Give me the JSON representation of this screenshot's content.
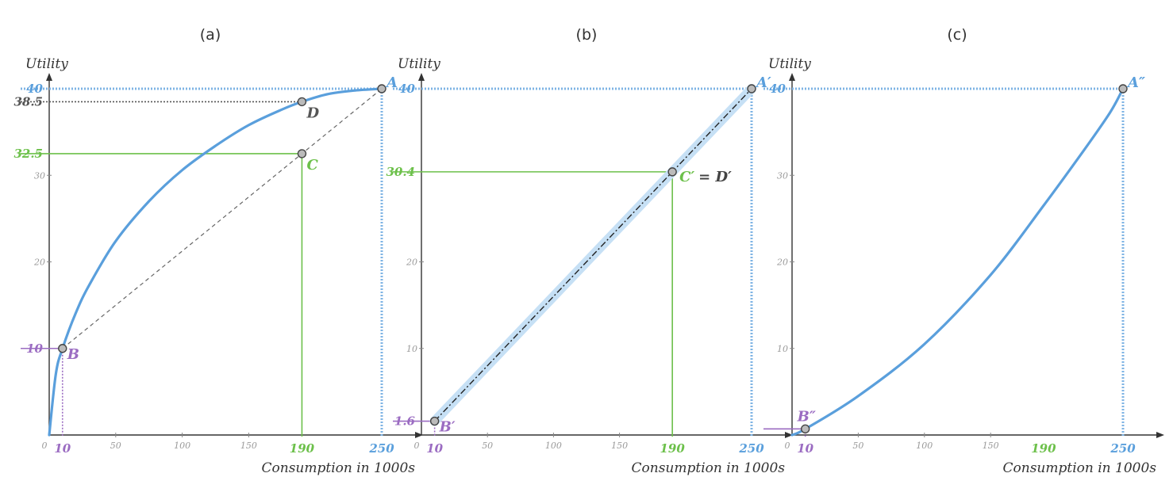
{
  "colors": {
    "curve": "#5a9fdc",
    "curve_halo": "#c6e0f5",
    "guide_blue": "#7fb4e4",
    "green": "#6cc04a",
    "purple": "#9b6cc2",
    "dark": "#555555",
    "axis": "#333333"
  },
  "chart_data": [
    {
      "type": "line",
      "panel_label": "(a)",
      "ylabel": "Utility",
      "xlabel": "Consumption in 1000s",
      "xlim": [
        0,
        250
      ],
      "ylim": [
        0,
        40
      ],
      "x_tick_labels": [
        "0",
        "50",
        "100",
        "150"
      ],
      "y_tick_labels": [
        "20",
        "30"
      ],
      "series": [
        {
          "style": "curve",
          "x": [
            0,
            5,
            10,
            20,
            30,
            50,
            75,
            100,
            125,
            150,
            175,
            190,
            210,
            230,
            250
          ],
          "y": [
            0,
            7.07,
            10,
            14.1,
            17.3,
            22.4,
            27.0,
            30.6,
            33.4,
            35.8,
            37.6,
            38.5,
            39.4,
            39.8,
            40
          ]
        },
        {
          "style": "chord",
          "x": [
            10,
            250
          ],
          "y": [
            10,
            40
          ]
        }
      ],
      "points": [
        {
          "label": "A",
          "x": 250,
          "y": 40,
          "color": "blue"
        },
        {
          "label": "D",
          "x": 190,
          "y": 38.5,
          "color": "dark"
        },
        {
          "label": "C",
          "x": 190,
          "y": 32.5,
          "color": "green"
        },
        {
          "label": "B",
          "x": 10,
          "y": 10,
          "color": "purple"
        }
      ],
      "key_y_ticks": [
        {
          "text": "40",
          "value": 40,
          "color": "blue"
        },
        {
          "text": "38.5",
          "value": 38.5,
          "color": "dark"
        },
        {
          "text": "32.5",
          "value": 32.5,
          "color": "green"
        },
        {
          "text": "10",
          "value": 10,
          "color": "purple"
        }
      ],
      "key_x_ticks": [
        {
          "text": "10",
          "value": 10,
          "color": "purple"
        },
        {
          "text": "190",
          "value": 190,
          "color": "green"
        },
        {
          "text": "250",
          "value": 250,
          "color": "blue"
        }
      ]
    },
    {
      "type": "line",
      "panel_label": "(b)",
      "ylabel": "Utility",
      "xlabel": "Consumption in 1000s",
      "xlim": [
        0,
        250
      ],
      "ylim": [
        0,
        40
      ],
      "x_tick_labels": [
        "0",
        "50",
        "100",
        "150"
      ],
      "y_tick_labels": [
        "10",
        "20"
      ],
      "series": [
        {
          "style": "straight",
          "x": [
            10,
            250
          ],
          "y": [
            1.6,
            40
          ]
        }
      ],
      "points": [
        {
          "label": "A′",
          "x": 250,
          "y": 40,
          "color": "blue"
        },
        {
          "label": "C′",
          "x": 190,
          "y": 30.4,
          "color": "green",
          "suffix": " = D′"
        },
        {
          "label": "B′",
          "x": 10,
          "y": 1.6,
          "color": "purple"
        }
      ],
      "key_y_ticks": [
        {
          "text": "40",
          "value": 40,
          "color": "blue"
        },
        {
          "text": "30.4",
          "value": 30.4,
          "color": "green"
        },
        {
          "text": "1.6",
          "value": 1.6,
          "color": "purple"
        }
      ],
      "key_x_ticks": [
        {
          "text": "10",
          "value": 10,
          "color": "purple"
        },
        {
          "text": "190",
          "value": 190,
          "color": "green"
        },
        {
          "text": "250",
          "value": 250,
          "color": "blue"
        }
      ]
    },
    {
      "type": "line",
      "panel_label": "(c)",
      "ylabel": "Utility",
      "xlabel": "Consumption in 1000s",
      "xlim": [
        0,
        250
      ],
      "ylim": [
        0,
        40
      ],
      "x_tick_labels": [
        "0",
        "50",
        "100",
        "150"
      ],
      "y_tick_labels": [
        "10",
        "20",
        "30"
      ],
      "series": [
        {
          "style": "curve",
          "x": [
            0,
            10,
            50,
            100,
            150,
            190,
            220,
            240,
            250
          ],
          "y": [
            0,
            0.7,
            4.5,
            10.5,
            18.5,
            26.5,
            32.8,
            37.2,
            40
          ]
        }
      ],
      "points": [
        {
          "label": "A″",
          "x": 250,
          "y": 40,
          "color": "blue"
        },
        {
          "label": "B″",
          "x": 10,
          "y": 0.7,
          "color": "purple"
        }
      ],
      "key_y_ticks": [
        {
          "text": "40",
          "value": 40,
          "color": "blue"
        }
      ],
      "key_x_ticks": [
        {
          "text": "10",
          "value": 10,
          "color": "purple"
        },
        {
          "text": "190",
          "value": 190,
          "color": "green"
        },
        {
          "text": "250",
          "value": 250,
          "color": "blue"
        }
      ]
    }
  ]
}
